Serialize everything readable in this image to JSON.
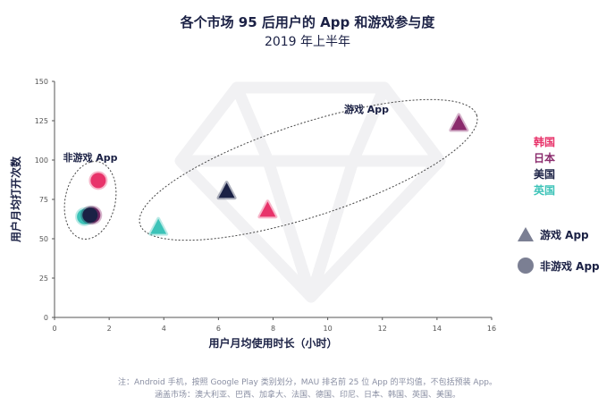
{
  "chart_data": {
    "type": "scatter",
    "title": "各个市场 95 后用户的 App 和游戏参与度",
    "subtitle": "2019 年上半年",
    "xlabel": "用户月均使用时长（小时）",
    "ylabel": "用户月均打开次数",
    "xlim": [
      0,
      16
    ],
    "ylim": [
      0,
      150
    ],
    "xticks": [
      "0",
      "2",
      "4",
      "6",
      "8",
      "10",
      "12",
      "14",
      "16"
    ],
    "yticks": [
      "0",
      "25",
      "50",
      "75",
      "100",
      "125",
      "150"
    ],
    "grid": false,
    "group_labels": {
      "game": "游戏 App",
      "nongame": "非游戏 App"
    },
    "countries": [
      {
        "name": "韩国",
        "color": "#e8336a"
      },
      {
        "name": "日本",
        "color": "#8a2a6c"
      },
      {
        "name": "美国",
        "color": "#1b2145"
      },
      {
        "name": "英国",
        "color": "#3cc3b8"
      }
    ],
    "series": [
      {
        "name": "游戏 App",
        "marker": "triangle",
        "points": [
          {
            "country": "韩国",
            "x": 7.8,
            "y": 68
          },
          {
            "country": "日本",
            "x": 14.8,
            "y": 123
          },
          {
            "country": "美国",
            "x": 6.3,
            "y": 80
          },
          {
            "country": "英国",
            "x": 3.8,
            "y": 57
          }
        ]
      },
      {
        "name": "非游戏 App",
        "marker": "circle",
        "points": [
          {
            "country": "韩国",
            "x": 1.6,
            "y": 87
          },
          {
            "country": "英国",
            "x": 1.1,
            "y": 64
          },
          {
            "country": "日本",
            "x": 1.4,
            "y": 65
          },
          {
            "country": "美国",
            "x": 1.3,
            "y": 65
          }
        ]
      }
    ],
    "legend": {
      "position": "right"
    }
  },
  "footnote": {
    "line1": "注：Android 手机，按照 Google Play 类别划分，MAU 排名前 25 位 App 的平均值，不包括预装 App。",
    "line2": "涵盖市场：澳大利亚、巴西、加拿大、法国、德国、印尼、日本、韩国、英国、美国。"
  }
}
